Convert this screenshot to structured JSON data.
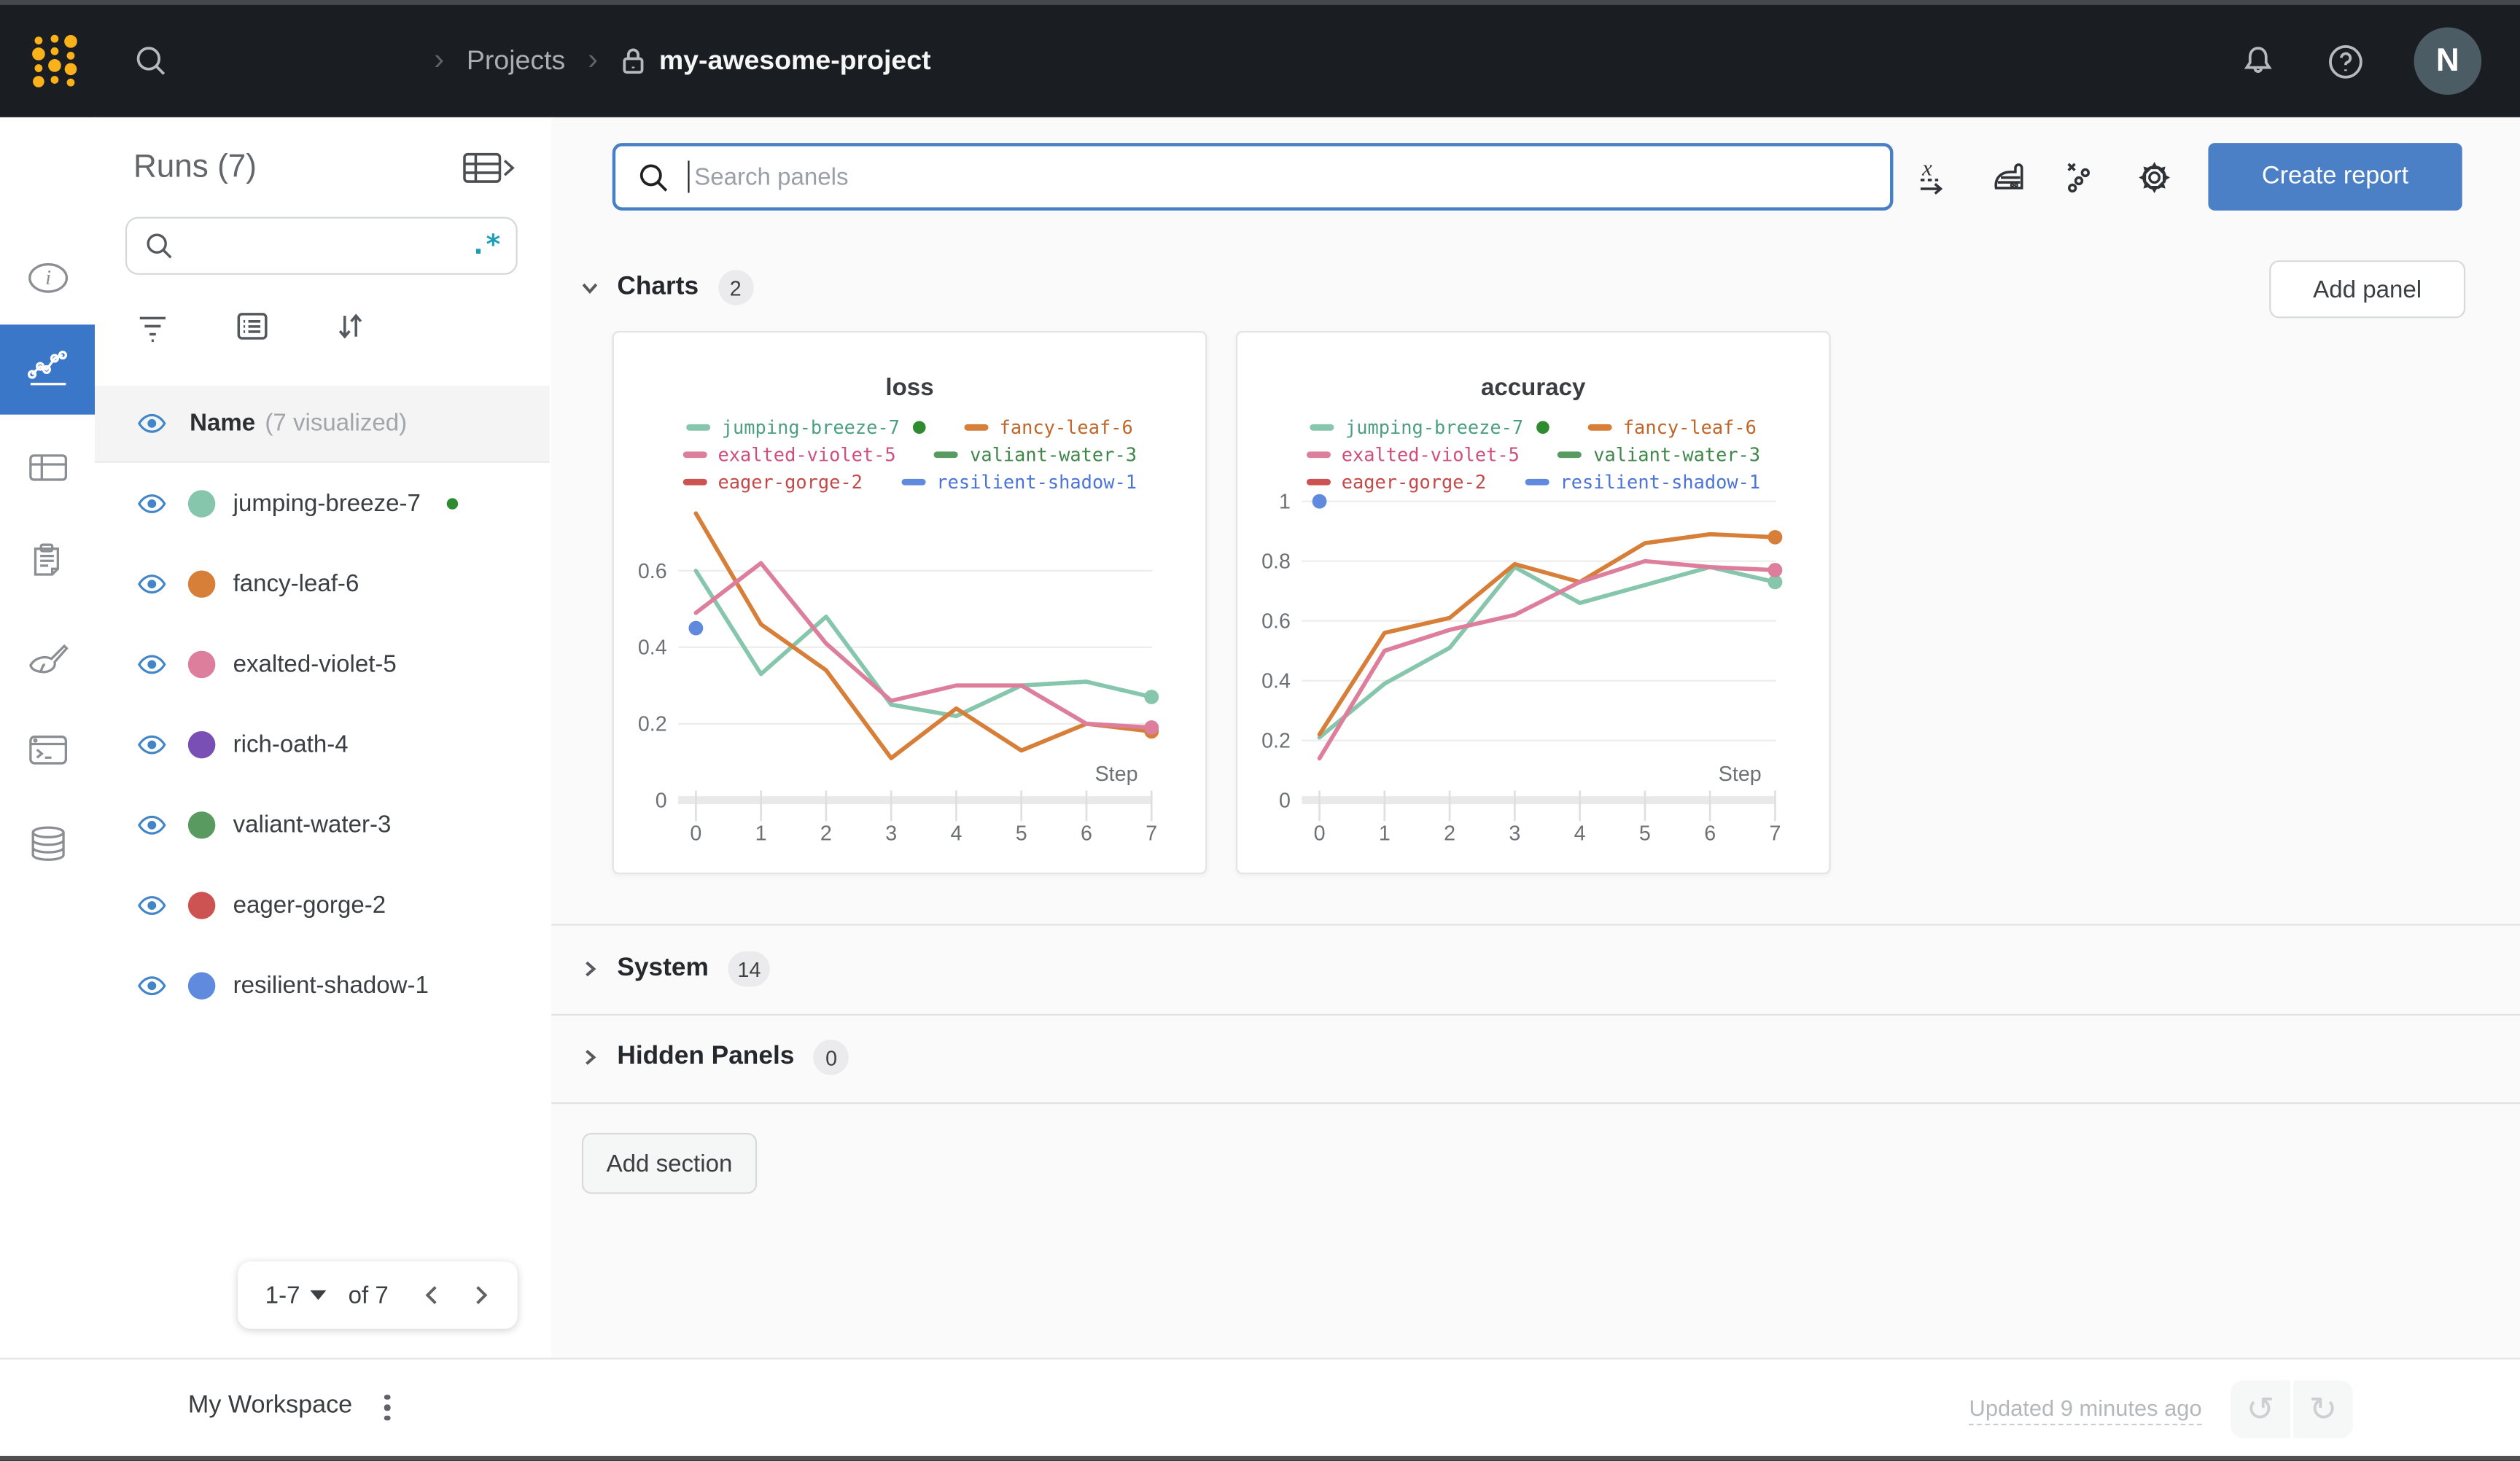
{
  "topbar": {
    "breadcrumb": {
      "projects": "Projects",
      "project": "my-awesome-project"
    },
    "avatar_initial": "N",
    "icons": [
      "wandb-logo",
      "search-icon",
      "lock-icon",
      "bell-icon",
      "help-icon"
    ]
  },
  "sidebar": {
    "icons": [
      "info-icon",
      "line-chart-icon",
      "table-icon",
      "clipboard-icon",
      "brush-icon",
      "terminal-icon",
      "database-icon"
    ],
    "selected": "line-chart-icon",
    "selected_color": "#3b77c9"
  },
  "runs_panel": {
    "title": "Runs (7)",
    "regex_label": ".*",
    "header": {
      "name_label": "Name",
      "visualized_label": "(7 visualized)"
    },
    "runs": [
      {
        "name": "jumping-breeze-7",
        "color": "#85c6ac",
        "running": true
      },
      {
        "name": "fancy-leaf-6",
        "color": "#d77f39",
        "running": false
      },
      {
        "name": "exalted-violet-5",
        "color": "#dd7e9d",
        "running": false
      },
      {
        "name": "rich-oath-4",
        "color": "#7a4fb5",
        "running": false
      },
      {
        "name": "valiant-water-3",
        "color": "#589a60",
        "running": false
      },
      {
        "name": "eager-gorge-2",
        "color": "#cd5252",
        "running": false
      },
      {
        "name": "resilient-shadow-1",
        "color": "#5f8add",
        "running": false
      }
    ],
    "pagination": {
      "range": "1-7",
      "of": "of 7"
    }
  },
  "main": {
    "search": {
      "placeholder": "Search panels"
    },
    "create_report_label": "Create report",
    "add_panel_label": "Add panel",
    "toolbar_icons": [
      "x-axis-icon",
      "smoothing-iron-icon",
      "outliers-icon",
      "gear-icon"
    ],
    "sections": {
      "charts": {
        "label": "Charts",
        "count": "2"
      },
      "system": {
        "label": "System",
        "count": "14"
      },
      "hidden": {
        "label": "Hidden Panels",
        "count": "0"
      }
    },
    "add_section_label": "Add section"
  },
  "legend": [
    {
      "name": "jumping-breeze-7",
      "color": "#85c6ac",
      "text_color": "#4d9f81",
      "running": true
    },
    {
      "name": "fancy-leaf-6",
      "color": "#d77f39",
      "text_color": "#c0662a",
      "running": false
    },
    {
      "name": "exalted-violet-5",
      "color": "#dd7e9d",
      "text_color": "#ce4f7d",
      "running": false
    },
    {
      "name": "valiant-water-3",
      "color": "#589a60",
      "text_color": "#3f8749",
      "running": false
    },
    {
      "name": "eager-gorge-2",
      "color": "#cd5252",
      "text_color": "#c64848",
      "running": false
    },
    {
      "name": "resilient-shadow-1",
      "color": "#5f8add",
      "text_color": "#4b74d8",
      "running": false
    }
  ],
  "chart_data": [
    {
      "type": "line",
      "title": "loss",
      "xlabel": "Step",
      "x": [
        0,
        1,
        2,
        3,
        4,
        5,
        6,
        7
      ],
      "xlim": [
        0,
        7
      ],
      "ylim": [
        0,
        0.79
      ],
      "yticks": [
        0,
        0.2,
        0.4,
        0.6
      ],
      "grid": true,
      "legend_position": "top",
      "series": [
        {
          "name": "jumping-breeze-7",
          "color": "#85c6ac",
          "values": [
            0.6,
            0.33,
            0.48,
            0.25,
            0.22,
            0.3,
            0.31,
            0.27
          ],
          "end_dot": true
        },
        {
          "name": "fancy-leaf-6",
          "color": "#d77f39",
          "values": [
            0.75,
            0.46,
            0.34,
            0.11,
            0.24,
            0.13,
            0.2,
            0.18
          ],
          "end_dot": true
        },
        {
          "name": "exalted-violet-5",
          "color": "#dd7e9d",
          "values": [
            0.49,
            0.62,
            0.41,
            0.26,
            0.3,
            0.3,
            0.2,
            0.19
          ],
          "end_dot": true
        }
      ],
      "points": [
        {
          "name": "resilient-shadow-1",
          "color": "#5f8add",
          "x": 0,
          "y": 0.45
        }
      ]
    },
    {
      "type": "line",
      "title": "accuracy",
      "xlabel": "Step",
      "x": [
        0,
        1,
        2,
        3,
        4,
        5,
        6,
        7
      ],
      "xlim": [
        0,
        7
      ],
      "ylim": [
        0,
        1.0
      ],
      "yticks": [
        0,
        0.2,
        0.4,
        0.6,
        0.8,
        1
      ],
      "grid": true,
      "legend_position": "top",
      "series": [
        {
          "name": "jumping-breeze-7",
          "color": "#85c6ac",
          "values": [
            0.21,
            0.39,
            0.51,
            0.78,
            0.66,
            0.72,
            0.78,
            0.73
          ],
          "end_dot": true
        },
        {
          "name": "fancy-leaf-6",
          "color": "#d77f39",
          "values": [
            0.22,
            0.56,
            0.61,
            0.79,
            0.73,
            0.86,
            0.89,
            0.88
          ],
          "end_dot": true
        },
        {
          "name": "exalted-violet-5",
          "color": "#dd7e9d",
          "values": [
            0.14,
            0.5,
            0.57,
            0.62,
            0.73,
            0.8,
            0.78,
            0.77
          ],
          "end_dot": true
        }
      ],
      "points": [
        {
          "name": "resilient-shadow-1",
          "color": "#5f8add",
          "x": 0,
          "y": 1.0
        }
      ]
    }
  ],
  "footer": {
    "workspace_label": "My Workspace",
    "updated_label": "Updated 9 minutes ago"
  }
}
